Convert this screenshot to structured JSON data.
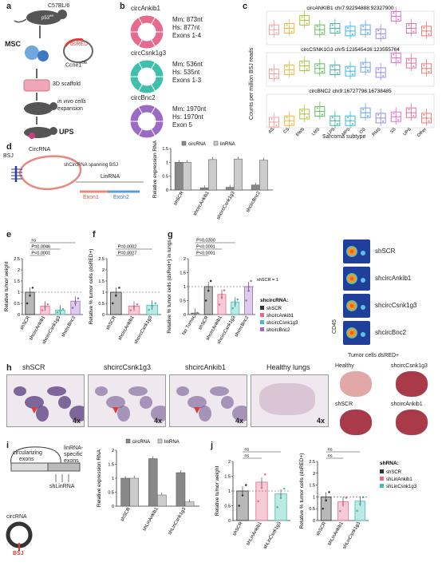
{
  "panel_labels": {
    "a": "a",
    "b": "b",
    "c": "c",
    "d": "d",
    "e": "e",
    "f": "f",
    "g": "g",
    "h": "h",
    "i": "i",
    "j": "j"
  },
  "panel_a": {
    "strain": "C57BL/6",
    "p53": "p53",
    "p53_sup": "fl/fl",
    "msc": "MSC",
    "dsred": "dsRED",
    "ccne": "Ccne1",
    "ccne_sup": "OE",
    "scaffold": "3D scaffold",
    "invivo_1": "in vivo cells",
    "invivo_2": "expansion",
    "ups": "UPS"
  },
  "panel_b": {
    "items": [
      {
        "name": "circAnkib1",
        "mm": "Mm: 873nt",
        "hs": "Hs: 877nt",
        "exons": "Exons 1-4",
        "color": "#e56a8e"
      },
      {
        "name": "circCsnk1g3",
        "mm": "Mm: 536nt",
        "hs": "Hs: 535nt",
        "exons": "Exons 1-3",
        "color": "#3fbfae"
      },
      {
        "name": "circBnc2",
        "mm": "Mm: 1970nt",
        "hs": "Hs: 1970nt",
        "exons": "Exon 5",
        "color": "#9b6bc3"
      }
    ]
  },
  "panel_c": {
    "ylabel": "Counts per million BSJ reads",
    "xlabel": "Sarcoma subtype",
    "categories": [
      "AS",
      "CS",
      "EWS",
      "LMS",
      "LPS",
      "MPS",
      "OS",
      "RMS",
      "SS",
      "UPS",
      "Other"
    ],
    "colors": [
      "#f5a3a0",
      "#f4b642",
      "#a9c640",
      "#66bd63",
      "#43b7a0",
      "#3cbbd8",
      "#6aa5e8",
      "#9a8ae6",
      "#e46fc4",
      "#ea6f9b",
      "#f07a72"
    ],
    "plots": [
      {
        "title": "circANKIB1 chr7:92294888:92327900"
      },
      {
        "title": "circCSNK1G3 chr5:123545416:123555764"
      },
      {
        "title": "circBNC2 chr9:16727796:16738485"
      }
    ]
  },
  "panel_d": {
    "circrna": "CircRNA",
    "bsj": "BSJ",
    "sh_label": "shCircRNA spanning BSJ",
    "linrna": "LinRNA",
    "exon1": "Exon1",
    "exon2": "Exon2"
  },
  "chart_data": [
    {
      "id": "d",
      "type": "bar",
      "categories": [
        "shSCR",
        "shcircAnkib1",
        "shcircCsnk1g3",
        "shcircBnc2"
      ],
      "series": [
        {
          "name": "circRNA",
          "values": [
            1.0,
            0.08,
            0.1,
            0.18
          ]
        },
        {
          "name": "linRNA",
          "values": [
            1.0,
            1.1,
            1.12,
            1.08
          ]
        }
      ],
      "ylabel": "Relative expression RNA",
      "ylim": [
        0,
        1.5
      ],
      "yticks": [
        0,
        0.5,
        1.0,
        1.5
      ]
    },
    {
      "id": "e",
      "type": "bar",
      "categories": [
        "shSCR",
        "shcircAnkib1",
        "shcircCsnk1g3",
        "shcircBnc2"
      ],
      "values": [
        1.0,
        0.38,
        0.2,
        0.6
      ],
      "ylabel": "Relative tumor weight",
      "ylim": [
        0,
        2.5
      ],
      "yticks": [
        0.0,
        0.5,
        1.0,
        1.5,
        2.0,
        2.5
      ],
      "annotations": [
        "P<0.0001",
        "P=0.0046",
        "ns"
      ]
    },
    {
      "id": "f",
      "type": "bar",
      "categories": [
        "shSCR",
        "shcircAnkib1",
        "shcircCsnk1g3"
      ],
      "values": [
        1.0,
        0.38,
        0.42
      ],
      "ylabel": "Relative % tumor cells (dsRED+)",
      "ylim": [
        0,
        2.5
      ],
      "yticks": [
        0.0,
        0.5,
        1.0,
        1.5,
        2.0,
        2.5
      ],
      "annotations": [
        "P=0.0027",
        "P=0.0002"
      ]
    },
    {
      "id": "g",
      "type": "bar",
      "categories": [
        "No Tumor",
        "shSCR",
        "shcircAnkib1",
        "shcircCsnk1g3",
        "shcircBnc2"
      ],
      "values": [
        0.05,
        1.0,
        0.72,
        0.45,
        1.0
      ],
      "ylabel": "Relative % tumor cells (dsRed+) in lungs",
      "ylim": [
        0,
        2.0
      ],
      "yticks": [
        0.0,
        0.5,
        1.0,
        1.5,
        2.0
      ],
      "annotations": [
        "P<0.0001",
        "P<0.0001",
        "P=0.0300"
      ],
      "ref_label": "shSCR = 1",
      "legend_title": "shcircRNA:",
      "legend": [
        {
          "name": "shSCR",
          "color": "#333333"
        },
        {
          "name": "shcircAnkib1",
          "color": "#e56a8e"
        },
        {
          "name": "shcircCsnk1g3",
          "color": "#3fbfae"
        },
        {
          "name": "shcircBnc2",
          "color": "#9b6bc3"
        }
      ]
    },
    {
      "id": "i",
      "type": "bar",
      "categories": [
        "shSCR",
        "shLinAnkib1",
        "shLinCsnk1g3"
      ],
      "series": [
        {
          "name": "circRNA",
          "values": [
            1.0,
            1.7,
            1.2
          ]
        },
        {
          "name": "linRNA",
          "values": [
            1.0,
            0.4,
            0.15
          ]
        }
      ],
      "ylabel": "Relative expression RNA",
      "ylim": [
        0,
        2.0
      ],
      "yticks": [
        0,
        0.5,
        1.0,
        1.5,
        2.0
      ]
    },
    {
      "id": "j1",
      "type": "bar",
      "categories": [
        "shSCR",
        "shLinAnkib1",
        "shLinCsnk1g3"
      ],
      "values": [
        1.0,
        1.3,
        0.9
      ],
      "ylabel": "Relative tumor weight",
      "ylim": [
        0,
        2.0
      ],
      "yticks": [
        0.0,
        0.5,
        1.0,
        1.5,
        2.0
      ],
      "annotations": [
        "ns",
        "ns"
      ]
    },
    {
      "id": "j2",
      "type": "bar",
      "categories": [
        "shSCR",
        "shLinAnkib1",
        "shLinCsnk1g3"
      ],
      "values": [
        1.0,
        0.8,
        0.82
      ],
      "ylabel": "Relative % tumor cells (dsRED+)",
      "ylim": [
        0,
        2.5
      ],
      "yticks": [
        0.0,
        0.5,
        1.0,
        1.5,
        2.0,
        2.5
      ],
      "annotations": [
        "ns",
        "ns"
      ],
      "legend_title": "shRNA:",
      "legend": [
        {
          "name": "shSCR",
          "color": "#333333"
        },
        {
          "name": "shLinAnkib1",
          "color": "#e56a8e"
        },
        {
          "name": "shLinCsnk1g3",
          "color": "#3fbfae"
        }
      ]
    }
  ],
  "panel_g_flow": {
    "labels": [
      "shSCR",
      "shcircAnkib1",
      "shcircCsnk1g3",
      "shcircBnc2"
    ],
    "yaxis": "CD45",
    "xaxis": "Tumor cells dsRED+"
  },
  "panel_h": {
    "images": [
      {
        "label": "shSCR",
        "mag": "4x"
      },
      {
        "label": "shcircCsnk1g3",
        "mag": "4x"
      },
      {
        "label": "shcircAnkib1",
        "mag": "4x"
      },
      {
        "label": "Healthy lungs",
        "mag": "4x"
      }
    ],
    "lungs": [
      "Healthy",
      "shcircCsnk1g3",
      "shSCR",
      "shcircAnkib1"
    ]
  },
  "panel_i": {
    "circularizing_1": "circularizing",
    "circularizing_2": "exons",
    "specific_1": "linRNA-",
    "specific_2": "specific",
    "specific_3": "exons",
    "shlin": "shLinRNA",
    "circrna": "circRNA",
    "bsj": "BSJ"
  }
}
